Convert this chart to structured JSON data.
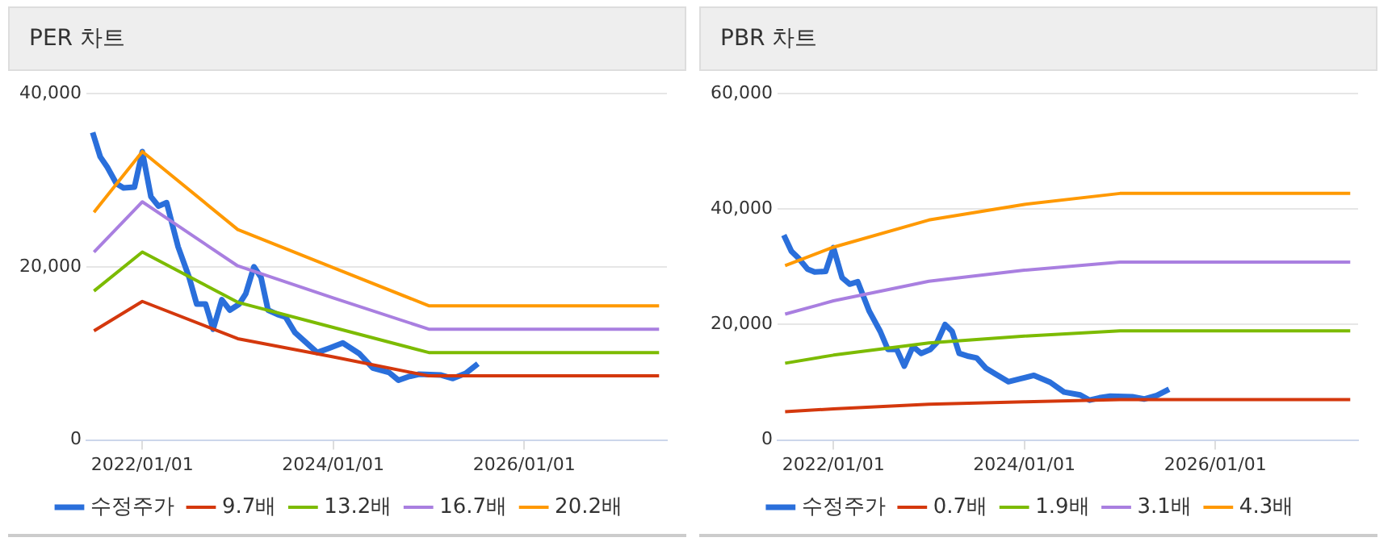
{
  "chart_data": [
    {
      "type": "line",
      "title": "PER 차트",
      "legend": "bottom",
      "grid": "y",
      "marker": "none",
      "line_style": "solid",
      "xlim": [
        "2021-06-01",
        "2027-07-01"
      ],
      "xticks": [
        {
          "value": "2022-01-01",
          "label": "2022/01/01"
        },
        {
          "value": "2024-01-01",
          "label": "2024/01/01"
        },
        {
          "value": "2026-01-01",
          "label": "2026/01/01"
        }
      ],
      "ylim": [
        0,
        40000
      ],
      "yticks": [
        0,
        {
          "value": 20000,
          "label": "20,000"
        },
        {
          "value": 40000,
          "label": "40,000"
        }
      ],
      "series": [
        {
          "name": "수정주가",
          "color": "#2a6fdb",
          "x": [
            "2021-06-25",
            "2021-07-24",
            "2021-08-20",
            "2021-09-24",
            "2021-10-21",
            "2021-12-02",
            "2022-01-01",
            "2022-02-03",
            "2022-03-04",
            "2022-04-04",
            "2022-05-18",
            "2022-06-29",
            "2022-07-28",
            "2022-08-31",
            "2022-09-29",
            "2022-11-01",
            "2022-12-02",
            "2023-01-07",
            "2023-02-01",
            "2023-03-04",
            "2023-03-31",
            "2023-04-27",
            "2023-06-02",
            "2023-07-03",
            "2023-08-08",
            "2023-09-14",
            "2023-11-01",
            "2023-12-17",
            "2024-02-07",
            "2024-04-09",
            "2024-06-01",
            "2024-08-02",
            "2024-09-07",
            "2024-10-14",
            "2024-11-25",
            "2025-02-17",
            "2025-04-03",
            "2025-05-22",
            "2025-07-08"
          ],
          "values": [
            35500,
            32700,
            31500,
            29600,
            29100,
            29200,
            33300,
            28100,
            27000,
            27400,
            22300,
            18800,
            15700,
            15700,
            12800,
            16200,
            15000,
            15700,
            16900,
            20000,
            18800,
            15000,
            14500,
            14200,
            12400,
            11400,
            10100,
            10600,
            11200,
            10000,
            8300,
            7800,
            6900,
            7300,
            7600,
            7500,
            7100,
            7700,
            8800
          ]
        },
        {
          "name": "9.7배",
          "color": "#d4380d",
          "x": [
            "2021-06-30",
            "2022-01-01",
            "2023-01-01",
            "2024-01-01",
            "2025-01-01",
            "2027-06-01"
          ],
          "values": [
            12600,
            16000,
            11700,
            9600,
            7400,
            7400
          ]
        },
        {
          "name": "13.2배",
          "color": "#7cbb00",
          "x": [
            "2021-06-30",
            "2022-01-01",
            "2023-01-01",
            "2024-01-01",
            "2025-01-01",
            "2027-06-01"
          ],
          "values": [
            17200,
            21700,
            15900,
            13000,
            10100,
            10100
          ]
        },
        {
          "name": "16.7배",
          "color": "#a97fe0",
          "x": [
            "2021-06-30",
            "2022-01-01",
            "2023-01-01",
            "2024-01-01",
            "2025-01-01",
            "2027-06-01"
          ],
          "values": [
            21700,
            27500,
            20100,
            16400,
            12800,
            12800
          ]
        },
        {
          "name": "20.2배",
          "color": "#ff9900",
          "x": [
            "2021-06-30",
            "2022-01-01",
            "2023-01-01",
            "2024-01-01",
            "2025-01-01",
            "2027-06-01"
          ],
          "values": [
            26300,
            33300,
            24300,
            19900,
            15500,
            15500
          ]
        }
      ]
    },
    {
      "type": "line",
      "title": "PBR 차트",
      "legend": "bottom",
      "grid": "y",
      "marker": "none",
      "line_style": "solid",
      "xlim": [
        "2021-06-01",
        "2027-07-01"
      ],
      "xticks": [
        {
          "value": "2022-01-01",
          "label": "2022/01/01"
        },
        {
          "value": "2024-01-01",
          "label": "2024/01/01"
        },
        {
          "value": "2026-01-01",
          "label": "2026/01/01"
        }
      ],
      "ylim": [
        0,
        60000
      ],
      "yticks": [
        0,
        {
          "value": 20000,
          "label": "20,000"
        },
        {
          "value": 40000,
          "label": "40,000"
        },
        {
          "value": 60000,
          "label": "60,000"
        }
      ],
      "series": [
        {
          "name": "수정주가",
          "color": "#2a6fdb",
          "x": [
            "2021-06-25",
            "2021-07-24",
            "2021-08-20",
            "2021-09-24",
            "2021-10-21",
            "2021-12-02",
            "2022-01-01",
            "2022-02-03",
            "2022-03-04",
            "2022-04-04",
            "2022-05-18",
            "2022-06-29",
            "2022-07-28",
            "2022-08-31",
            "2022-09-29",
            "2022-11-01",
            "2022-12-02",
            "2023-01-07",
            "2023-02-01",
            "2023-03-04",
            "2023-03-31",
            "2023-04-27",
            "2023-06-02",
            "2023-07-03",
            "2023-08-08",
            "2023-09-14",
            "2023-11-01",
            "2023-12-17",
            "2024-02-07",
            "2024-04-09",
            "2024-06-01",
            "2024-08-02",
            "2024-09-07",
            "2024-10-14",
            "2024-11-25",
            "2025-02-17",
            "2025-04-03",
            "2025-05-22",
            "2025-07-08"
          ],
          "values": [
            35500,
            32700,
            31500,
            29600,
            29100,
            29200,
            33300,
            28100,
            27000,
            27400,
            22300,
            18800,
            15700,
            15700,
            12800,
            16200,
            15000,
            15700,
            16900,
            20000,
            18800,
            15000,
            14500,
            14200,
            12400,
            11400,
            10100,
            10600,
            11200,
            10000,
            8300,
            7800,
            6900,
            7300,
            7600,
            7500,
            7100,
            7700,
            8800
          ]
        },
        {
          "name": "0.7배",
          "color": "#d4380d",
          "x": [
            "2021-06-30",
            "2022-01-01",
            "2023-01-01",
            "2024-01-01",
            "2025-01-01",
            "2027-06-01"
          ],
          "values": [
            4900,
            5400,
            6200,
            6600,
            7000,
            7000
          ]
        },
        {
          "name": "1.9배",
          "color": "#7cbb00",
          "x": [
            "2021-06-30",
            "2022-01-01",
            "2023-01-01",
            "2024-01-01",
            "2025-01-01",
            "2027-06-01"
          ],
          "values": [
            13300,
            14700,
            16800,
            18000,
            18900,
            18900
          ]
        },
        {
          "name": "3.1배",
          "color": "#a97fe0",
          "x": [
            "2021-06-30",
            "2022-01-01",
            "2023-01-01",
            "2024-01-01",
            "2025-01-01",
            "2027-06-01"
          ],
          "values": [
            21800,
            24100,
            27500,
            29400,
            30800,
            30800
          ]
        },
        {
          "name": "4.3배",
          "color": "#ff9900",
          "x": [
            "2021-06-30",
            "2022-01-01",
            "2023-01-01",
            "2024-01-01",
            "2025-01-01",
            "2027-06-01"
          ],
          "values": [
            30200,
            33400,
            38100,
            40800,
            42700,
            42700
          ]
        }
      ]
    }
  ]
}
